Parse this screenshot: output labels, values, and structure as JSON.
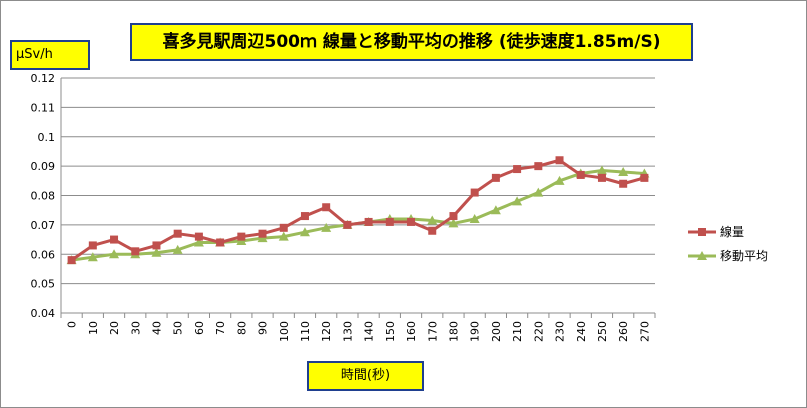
{
  "chart_data": {
    "type": "line",
    "title": "喜多見駅周辺500ｍ 線量と移動平均の推移 (徒歩速度1.85m/S)",
    "ylabel": "μSv/h",
    "xlabel": "時間(秒)",
    "ylim": [
      0.04,
      0.12
    ],
    "yticks": [
      "0.04",
      "0.05",
      "0.06",
      "0.07",
      "0.08",
      "0.09",
      "0.1",
      "0.11",
      "0.12"
    ],
    "x": [
      0,
      10,
      20,
      30,
      40,
      50,
      60,
      70,
      80,
      90,
      100,
      110,
      120,
      130,
      140,
      150,
      160,
      170,
      180,
      190,
      200,
      210,
      220,
      230,
      240,
      250,
      260,
      270
    ],
    "grid": "horizontal",
    "legend_position": "right",
    "series": [
      {
        "name": "線量",
        "color": "#c0504d",
        "marker": "square",
        "values": [
          0.058,
          0.063,
          0.065,
          0.061,
          0.063,
          0.067,
          0.066,
          0.064,
          0.066,
          0.067,
          0.069,
          0.073,
          0.076,
          0.07,
          0.071,
          0.071,
          0.071,
          0.068,
          0.073,
          0.081,
          0.086,
          0.089,
          0.09,
          0.092,
          0.087,
          0.086,
          0.084,
          0.086
        ]
      },
      {
        "name": "移動平均",
        "color": "#9bbb59",
        "marker": "triangle",
        "values": [
          0.058,
          0.059,
          0.06,
          0.06,
          0.0605,
          0.0615,
          0.064,
          0.064,
          0.0645,
          0.0655,
          0.066,
          0.0675,
          0.069,
          0.07,
          0.071,
          0.072,
          0.072,
          0.0715,
          0.0705,
          0.072,
          0.075,
          0.078,
          0.081,
          0.085,
          0.0875,
          0.0885,
          0.088,
          0.0875
        ]
      }
    ]
  }
}
